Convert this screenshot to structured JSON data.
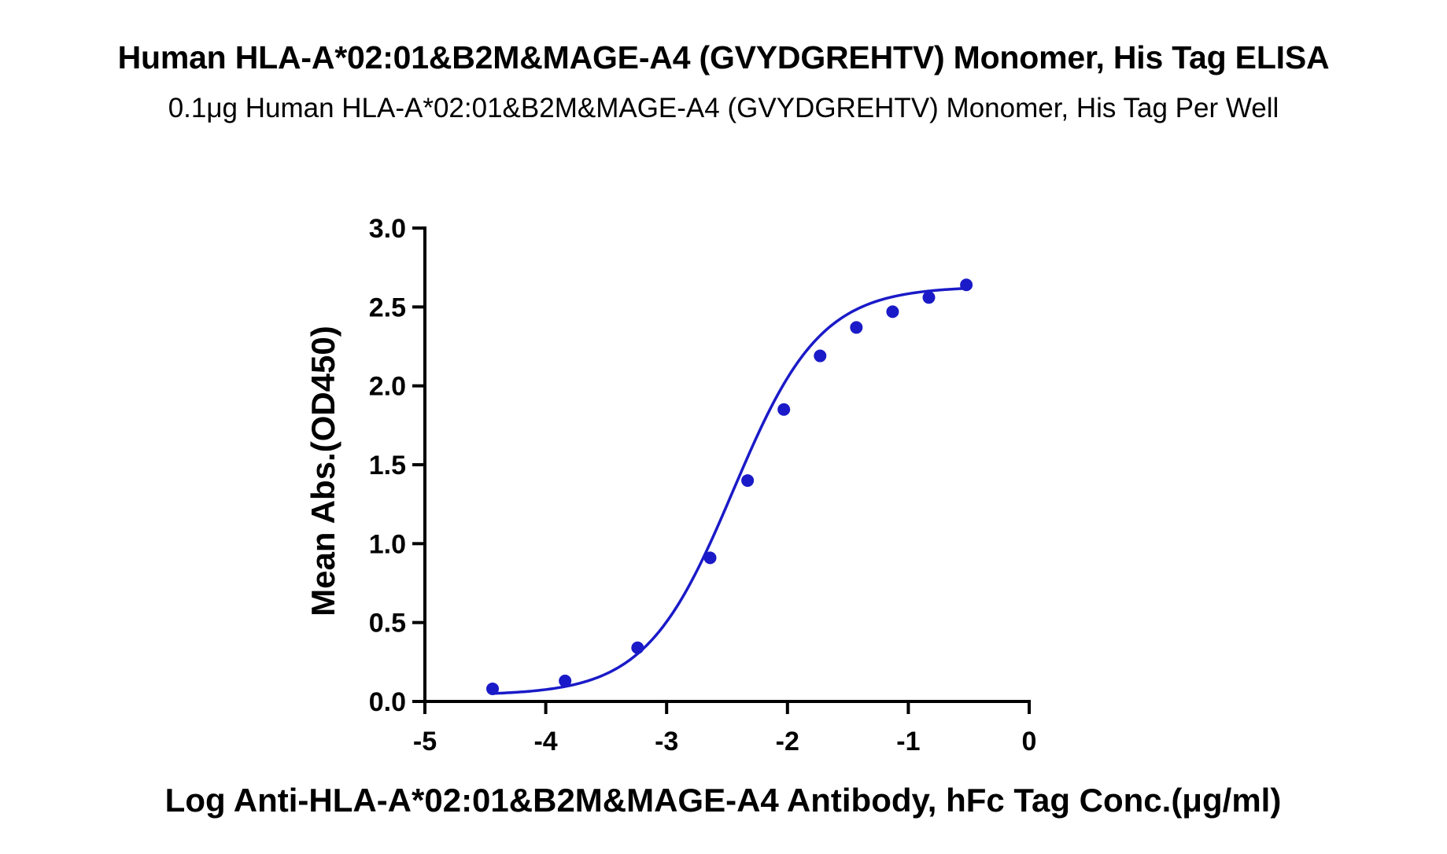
{
  "chart_data": {
    "type": "scatter",
    "title": "Human HLA-A*02:01&B2M&MAGE-A4 (GVYDGREHTV) Monomer, His Tag ELISA",
    "subtitle": "0.1μg Human HLA-A*02:01&B2M&MAGE-A4 (GVYDGREHTV) Monomer, His Tag Per Well",
    "xlabel": "Log Anti-HLA-A*02:01&B2M&MAGE-A4 Antibody, hFc Tag Conc.(μg/ml)",
    "ylabel": "Mean Abs.(OD450)",
    "xlim": [
      -5,
      0
    ],
    "ylim": [
      0,
      3.0
    ],
    "x_ticks": [
      "-5",
      "-4",
      "-3",
      "-2",
      "-1",
      "0"
    ],
    "y_ticks": [
      "0.0",
      "0.5",
      "1.0",
      "1.5",
      "2.0",
      "2.5",
      "3.0"
    ],
    "grid": false,
    "legend": "none",
    "series": [
      {
        "marker_color": "#1a1ac8",
        "line_color": "#1a1ac8",
        "x": [
          -4.44,
          -3.84,
          -3.24,
          -2.64,
          -2.33,
          -2.03,
          -1.73,
          -1.43,
          -1.13,
          -0.83,
          -0.52
        ],
        "y": [
          0.08,
          0.13,
          0.34,
          0.91,
          1.4,
          1.85,
          2.19,
          2.37,
          2.47,
          2.56,
          2.64
        ],
        "fit": {
          "model": "4PL",
          "bottom": 0.04,
          "top": 2.63,
          "log_ec50": -2.45,
          "hill": 1.2
        }
      }
    ]
  }
}
